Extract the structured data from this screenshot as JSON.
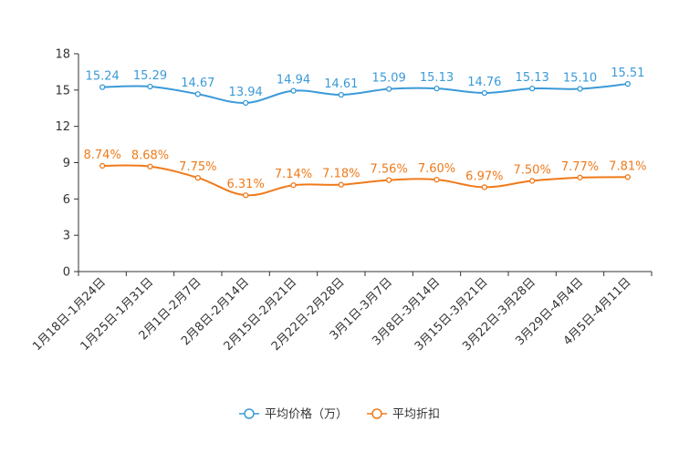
{
  "chart_data": {
    "type": "line",
    "title": "",
    "xlabel": "",
    "ylabel": "",
    "ylim": [
      0,
      18
    ],
    "yticks": [
      0,
      3,
      6,
      9,
      12,
      15,
      18
    ],
    "grid": false,
    "legend_position": "bottom-center",
    "categories": [
      "1月18日-1月24日",
      "1月25日-1月31日",
      "2月1日-2月7日",
      "2月8日-2月14日",
      "2月15日-2月21日",
      "2月22日-2月28日",
      "3月1日-3月7日",
      "3月8日-3月14日",
      "3月15日-3月21日",
      "3月22日-3月28日",
      "3月29日-4月4日",
      "4月5日-4月11日"
    ],
    "series": [
      {
        "name": "平均价格（万）",
        "color": "#3a9ad9",
        "values": [
          15.24,
          15.29,
          14.67,
          13.94,
          14.94,
          14.61,
          15.09,
          15.13,
          14.76,
          15.13,
          15.1,
          15.51
        ],
        "labels": [
          "15.24",
          "15.29",
          "14.67",
          "13.94",
          "14.94",
          "14.61",
          "15.09",
          "15.13",
          "14.76",
          "15.13",
          "15.10",
          "15.51"
        ]
      },
      {
        "name": "平均折扣",
        "color": "#f07a1a",
        "values": [
          8.74,
          8.68,
          7.75,
          6.31,
          7.14,
          7.18,
          7.56,
          7.6,
          6.97,
          7.5,
          7.77,
          7.81
        ],
        "labels": [
          "8.74%",
          "8.68%",
          "7.75%",
          "6.31%",
          "7.14%",
          "7.18%",
          "7.56%",
          "7.60%",
          "6.97%",
          "7.50%",
          "7.77%",
          "7.81%"
        ]
      }
    ]
  }
}
